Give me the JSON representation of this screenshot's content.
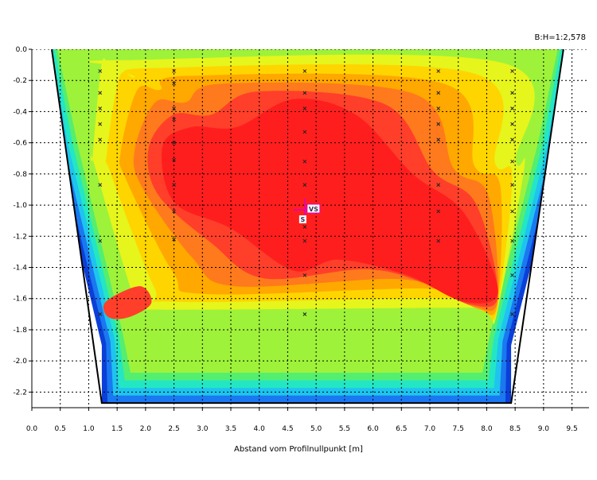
{
  "header": {
    "ratio_label": "B:H=1:2,578"
  },
  "chart_data": {
    "type": "heatmap",
    "title": "",
    "xlabel": "Abstand vom Profilnullpunkt [m]",
    "ylabel": "",
    "xlim": [
      0.0,
      9.8
    ],
    "ylim": [
      -2.3,
      0.0
    ],
    "grid": true,
    "x_ticks": [
      "0.0",
      "0.5",
      "1.0",
      "1.5",
      "2.0",
      "2.5",
      "3.0",
      "3.5",
      "4.0",
      "4.5",
      "5.0",
      "5.5",
      "6.0",
      "6.5",
      "7.0",
      "7.5",
      "8.0",
      "8.5",
      "9.0",
      "9.5"
    ],
    "y_ticks": [
      "0.0",
      "-0.2",
      "-0.4",
      "-0.6",
      "-0.8",
      "-1.0",
      "-1.2",
      "-1.4",
      "-1.6",
      "-1.8",
      "-2.0",
      "-2.2"
    ],
    "color_scale": [
      "#0b3fd8",
      "#1a78f0",
      "#1ec4ee",
      "#23e6c5",
      "#54ee70",
      "#9ef23a",
      "#e6f51c",
      "#ffd500",
      "#ffa800",
      "#ff7a1c",
      "#ff3f2a",
      "#ff1e1e"
    ],
    "channel_bank": {
      "top_left_x": 0.35,
      "top_right_x": 9.35,
      "bottom_left_x": 1.23,
      "bottom_right_x": 8.43,
      "bottom_y": -2.27
    },
    "verticals": [
      {
        "x": 1.2,
        "y_points": [
          -0.14,
          -0.28,
          -0.38,
          -0.48,
          -0.58,
          -0.87,
          -1.23,
          -1.7
        ]
      },
      {
        "x": 2.5,
        "y_points": [
          -0.14,
          -0.22,
          -0.38,
          -0.45,
          -0.6,
          -0.71,
          -0.87,
          -1.04,
          -1.22
        ]
      },
      {
        "x": 4.8,
        "y_points": [
          -0.14,
          -0.28,
          -0.38,
          -0.53,
          -0.72,
          -0.87,
          -1.14,
          -1.23,
          -1.45,
          -1.7
        ]
      },
      {
        "x": 7.15,
        "y_points": [
          -0.14,
          -0.28,
          -0.38,
          -0.48,
          -0.58,
          -0.87,
          -1.04,
          -1.23
        ]
      },
      {
        "x": 8.45,
        "y_points": [
          -0.14,
          -0.28,
          -0.38,
          -0.48,
          -0.58,
          -0.72,
          -0.87,
          -1.04,
          -1.23,
          -1.45,
          -1.7
        ]
      }
    ],
    "marker": {
      "label_vs": "VS",
      "label_s": "S",
      "x": 4.8,
      "y": -1.03
    }
  }
}
